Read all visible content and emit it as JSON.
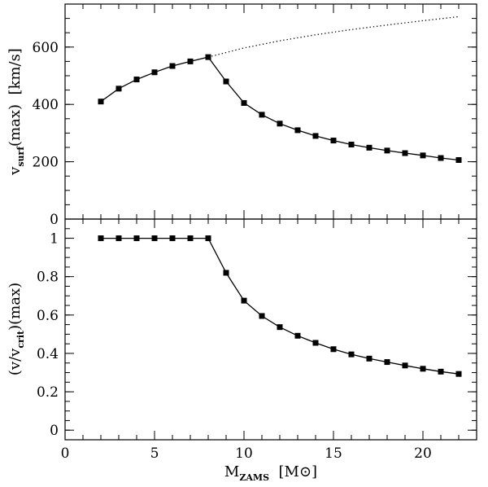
{
  "chart_data": [
    {
      "type": "line",
      "panel": "top",
      "ylabel": {
        "pre": "v",
        "sub": "surf",
        "post": "(max)  [km/s]"
      },
      "xlim": [
        0,
        23
      ],
      "ylim": [
        0,
        750
      ],
      "yticks": [
        0,
        200,
        400,
        600
      ],
      "ytick_labels": [
        "0",
        "200",
        "400",
        "600"
      ],
      "series": [
        {
          "style": "solid-squares",
          "x": [
            2,
            3,
            4,
            5,
            6,
            7,
            8,
            9,
            10,
            11,
            12,
            13,
            14,
            15,
            16,
            17,
            18,
            19,
            20,
            21,
            22
          ],
          "y": [
            410,
            455,
            487,
            512,
            534,
            550,
            565,
            480,
            405,
            364,
            333,
            310,
            290,
            274,
            260,
            249,
            239,
            230,
            222,
            213,
            206
          ]
        },
        {
          "style": "dotted",
          "x": [
            8,
            10,
            12,
            14,
            16,
            18,
            20,
            22
          ],
          "y": [
            565,
            597,
            622,
            643,
            661,
            677,
            692,
            706
          ]
        }
      ]
    },
    {
      "type": "line",
      "panel": "bottom",
      "ylabel": {
        "pre": "(v/v",
        "sub": "crit",
        "post": ")(max)"
      },
      "xlabel": {
        "pre": "M",
        "sub": "ZAMS",
        "post": "  [M",
        "sym": "⊙",
        "end": "]"
      },
      "xlim": [
        0,
        23
      ],
      "ylim": [
        -0.05,
        1.1
      ],
      "xticks": [
        0,
        5,
        10,
        15,
        20
      ],
      "xtick_labels": [
        "0",
        "5",
        "10",
        "15",
        "20"
      ],
      "yticks": [
        0,
        0.2,
        0.4,
        0.6,
        0.8,
        1
      ],
      "ytick_labels": [
        "0",
        "0.2",
        "0.4",
        "0.6",
        "0.8",
        "1"
      ],
      "series": [
        {
          "style": "solid-squares",
          "x": [
            2,
            3,
            4,
            5,
            6,
            7,
            8,
            9,
            10,
            11,
            12,
            13,
            14,
            15,
            16,
            17,
            18,
            19,
            20,
            21,
            22
          ],
          "y": [
            1.0,
            1.0,
            1.0,
            1.0,
            1.0,
            1.0,
            1.0,
            0.82,
            0.675,
            0.595,
            0.537,
            0.492,
            0.455,
            0.422,
            0.395,
            0.373,
            0.355,
            0.337,
            0.32,
            0.305,
            0.293
          ]
        }
      ]
    }
  ]
}
